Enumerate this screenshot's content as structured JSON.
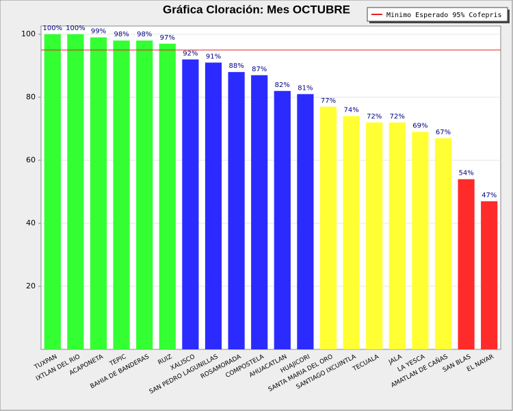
{
  "chart_data": {
    "type": "bar",
    "title": "Gráfica Cloración: Mes OCTUBRE",
    "categories": [
      "TUXPAN",
      "IXTLAN DEL RIO",
      "ACAPONETA",
      "TEPIC",
      "BAHIA DE BANDERAS",
      "RUIZ",
      "XALISCO",
      "SAN PEDRO LAGUNILLAS",
      "ROSAMORADA",
      "COMPOSTELA",
      "AHUACATLAN",
      "HUAJICORI",
      "SANTA MARIA DEL ORO",
      "SANTIAGO IXCUINTLA",
      "TECUALA",
      "JALA",
      "LA YESCA",
      "AMATLAN DE CAÑAS",
      "SAN BLAS",
      "EL NAYAR"
    ],
    "values": [
      100,
      100,
      99,
      98,
      98,
      97,
      92,
      91,
      88,
      87,
      82,
      81,
      77,
      74,
      72,
      72,
      69,
      67,
      54,
      47
    ],
    "value_labels": [
      "100%",
      "100%",
      "99%",
      "98%",
      "98%",
      "97%",
      "92%",
      "91%",
      "88%",
      "87%",
      "82%",
      "81%",
      "77%",
      "74%",
      "72%",
      "72%",
      "69%",
      "67%",
      "54%",
      "47%"
    ],
    "colors": [
      "#33ff33",
      "#33ff33",
      "#33ff33",
      "#33ff33",
      "#33ff33",
      "#33ff33",
      "#2b2bff",
      "#2b2bff",
      "#2b2bff",
      "#2b2bff",
      "#2b2bff",
      "#2b2bff",
      "#ffff33",
      "#ffff33",
      "#ffff33",
      "#ffff33",
      "#ffff33",
      "#ffff33",
      "#ff2a2a",
      "#ff2a2a"
    ],
    "ylim": [
      0,
      102.6
    ],
    "yticks": [
      20,
      40,
      60,
      80,
      100
    ],
    "grid": true,
    "reference_line": {
      "value": 95,
      "label": "Minimo Esperado 95% Cofepris",
      "color": "#e02020"
    },
    "legend_position": "top-right"
  }
}
